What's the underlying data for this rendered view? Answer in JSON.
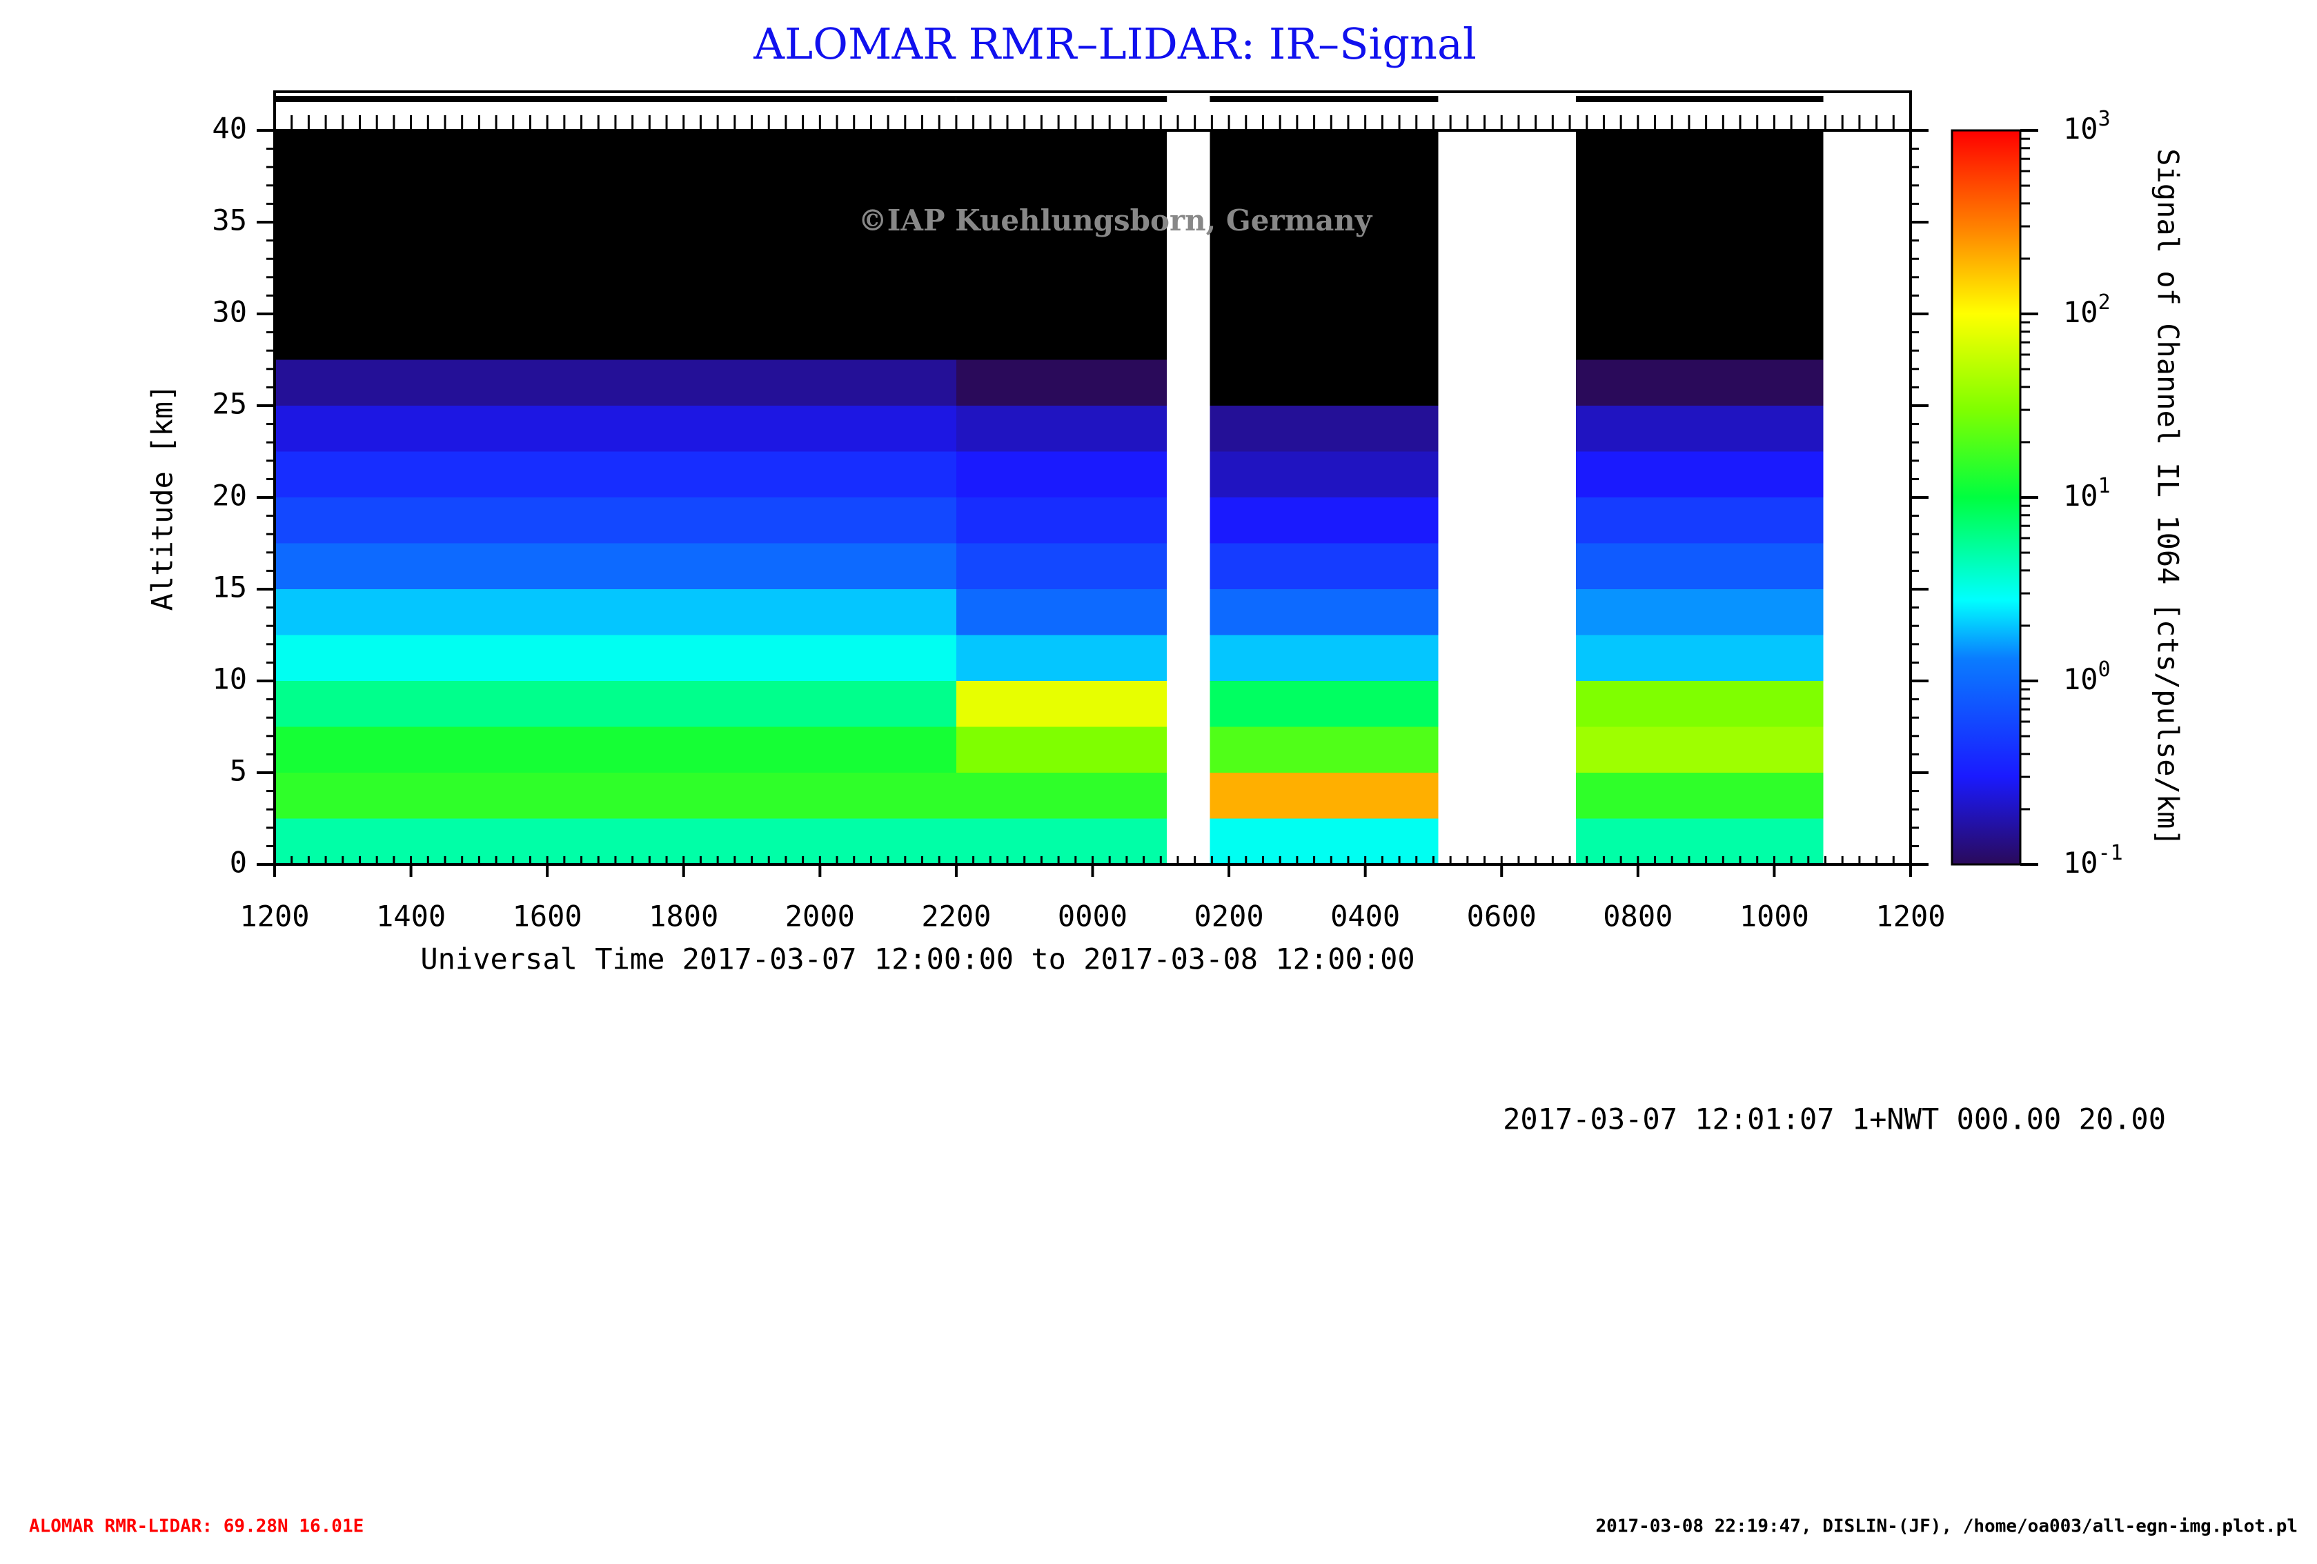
{
  "chart_data": {
    "type": "heatmap",
    "title": "ALOMAR RMR–LIDAR: IR–Signal",
    "watermark": "©IAP Kuehlungsborn, Germany",
    "x_label": "Universal Time 2017-03-07 12:00:00 to 2017-03-08 12:00:00",
    "y_label": "Altitude [km]",
    "colorbar_label": "Signal of Channel IL 1064 [cts/pulse/km]",
    "info": "2017-03-07 12:01:07 1+NWT 000.00 20.00",
    "footer_left": "ALOMAR RMR-LIDAR: 69.28N 16.01E",
    "footer_right": "2017-03-08 22:19:47, DISLIN-(JF), /home/oa003/all-egn-img.plot.pl",
    "xlim": [
      0,
      24
    ],
    "xticks": [
      {
        "value": 0,
        "label": "1200"
      },
      {
        "value": 2,
        "label": "1400"
      },
      {
        "value": 4,
        "label": "1600"
      },
      {
        "value": 6,
        "label": "1800"
      },
      {
        "value": 8,
        "label": "2000"
      },
      {
        "value": 10,
        "label": "2200"
      },
      {
        "value": 12,
        "label": "0000"
      },
      {
        "value": 14,
        "label": "0200"
      },
      {
        "value": 16,
        "label": "0400"
      },
      {
        "value": 18,
        "label": "0600"
      },
      {
        "value": 20,
        "label": "0800"
      },
      {
        "value": 22,
        "label": "1000"
      },
      {
        "value": 24,
        "label": "1200"
      }
    ],
    "ylim": [
      0,
      40
    ],
    "yticks": [
      0,
      5,
      10,
      15,
      20,
      25,
      30,
      35,
      40
    ],
    "zlim": [
      0.1,
      1000
    ],
    "zscale": "log",
    "zticks": [
      {
        "value": 0.1,
        "label": "10",
        "exp": "-1"
      },
      {
        "value": 1,
        "label": "10",
        "exp": "0"
      },
      {
        "value": 10,
        "label": "10",
        "exp": "1"
      },
      {
        "value": 100,
        "label": "10",
        "exp": "2"
      },
      {
        "value": 1000,
        "label": "10",
        "exp": "3"
      }
    ],
    "under_color": "#000000",
    "altitude_bins": [
      0,
      2.5,
      5,
      7.5,
      10,
      12.5,
      15,
      17.5,
      20,
      22.5,
      25,
      27.5,
      30,
      32.5,
      35,
      37.5,
      40
    ],
    "columns": [
      {
        "start": 0,
        "end": 10,
        "values": [
          5,
          15,
          12,
          6,
          3,
          2,
          1,
          0.6,
          0.4,
          0.25,
          0.15,
          0.08,
          0.01,
          0.01,
          0.01,
          0.01
        ]
      },
      {
        "start": 10,
        "end": 13.09,
        "values": [
          5,
          15,
          30,
          80,
          2,
          1,
          0.6,
          0.4,
          0.3,
          0.2,
          0.1,
          0.01,
          0.01,
          0.01,
          0.01,
          0.01
        ]
      },
      {
        "start": 13.72,
        "end": 17.07,
        "values": [
          3,
          200,
          20,
          8,
          2,
          1,
          0.5,
          0.3,
          0.2,
          0.15,
          0.08,
          0.01,
          0.01,
          0.01,
          0.01,
          0.01
        ]
      },
      {
        "start": 19.09,
        "end": 22.72,
        "values": [
          5,
          15,
          40,
          30,
          2,
          1.5,
          0.8,
          0.5,
          0.3,
          0.2,
          0.1,
          0.01,
          0.01,
          0.01,
          0.01,
          0.01
        ]
      }
    ]
  }
}
